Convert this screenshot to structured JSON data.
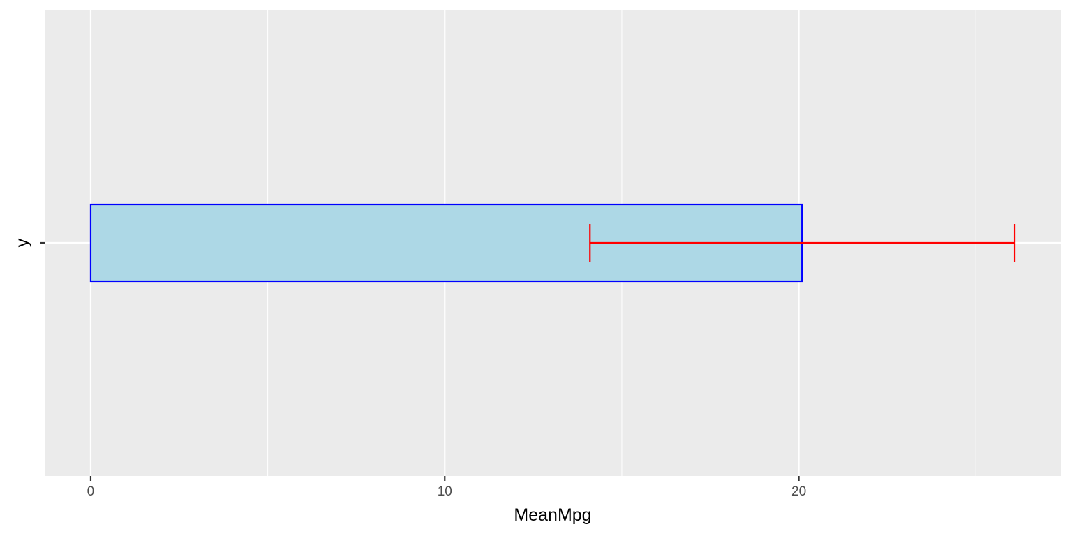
{
  "chart_data": {
    "type": "bar",
    "orientation": "horizontal",
    "categories": [
      "y"
    ],
    "values": [
      20.09
    ],
    "error_bars": [
      {
        "lower": 14.1,
        "upper": 26.1
      }
    ],
    "xlabel": "MeanMpg",
    "ylabel": "y",
    "xlim": [
      -1.3,
      27.4
    ],
    "x_ticks": [
      {
        "value": 0,
        "label": "0"
      },
      {
        "value": 10,
        "label": "10"
      },
      {
        "value": 20,
        "label": "20"
      }
    ],
    "x_minor_gridlines": [
      5,
      15,
      25
    ],
    "grid": true,
    "legend": "none",
    "colors": {
      "panel_background": "#ebebeb",
      "gridline": "#ffffff",
      "bar_fill": "#add8e6",
      "bar_outline": "#0000ff",
      "error_bar": "#ff0000",
      "tick_label": "#4d4d4d",
      "tick_mark": "#333333",
      "axis_title": "#000000"
    }
  }
}
